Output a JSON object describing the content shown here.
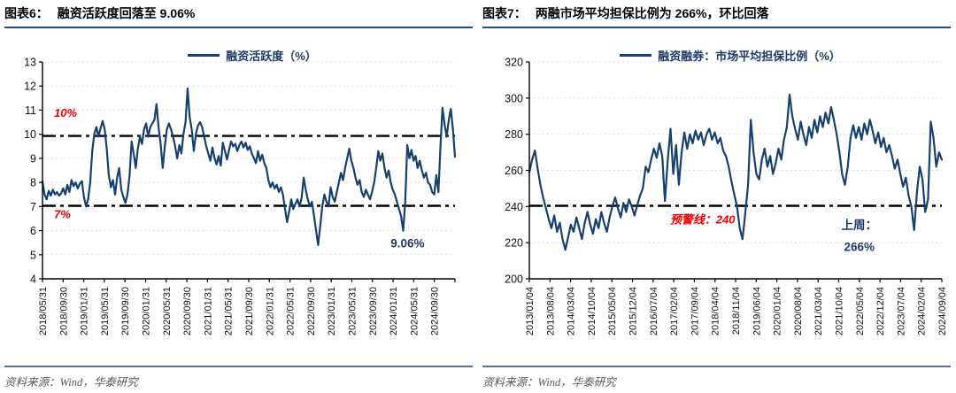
{
  "panels": [
    {
      "figure_label": "图表6：",
      "title": "融资活跃度回落至 9.06%",
      "source": "资料来源：Wind，华泰研究"
    },
    {
      "figure_label": "图表7：",
      "title": "两融市场平均担保比例为 266%，环比回落",
      "source": "资料来源：Wind，华泰研究"
    }
  ],
  "colors": {
    "series_line": "#17406e",
    "legend_text": "#1f3a68",
    "annotation_text": "#1f3a68",
    "reference_line": "#000000",
    "reference_label": "#f00000",
    "grid_line": "#d9d9d9",
    "axis": "#000000",
    "header_rule": "#1f4e79",
    "footer_rule": "#54759b",
    "footer_text": "#595959",
    "title_text": "#000000"
  },
  "chart_data": [
    {
      "type": "line",
      "title": "图表6：融资活跃度回落至 9.06%",
      "legend": [
        "融资活跃度（%）"
      ],
      "legend_position": "top-center",
      "grid": "horizontal-dotted",
      "ylim": [
        4,
        13
      ],
      "yticks": [
        4,
        5,
        6,
        7,
        8,
        9,
        10,
        11,
        12,
        13
      ],
      "x_tick_labels": [
        "2018/05/31",
        "2018/09/30",
        "2019/01/31",
        "2019/05/31",
        "2019/09/30",
        "2020/01/31",
        "2020/05/31",
        "2020/09/30",
        "2021/01/31",
        "2021/05/31",
        "2021/09/30",
        "2022/01/31",
        "2022/05/31",
        "2022/09/30",
        "2023/01/31",
        "2023/05/31",
        "2023/09/30",
        "2024/01/31",
        "2024/05/31",
        "2024/09/30"
      ],
      "ref_lines": [
        {
          "y": 9.93,
          "label": "10%",
          "label_x": 0.028,
          "label_y": 10.72,
          "anchor": "start"
        },
        {
          "y": 7.03,
          "label": "7%",
          "label_x": 0.028,
          "label_y": 6.52,
          "anchor": "start"
        }
      ],
      "annotations": [
        {
          "text": "9.06%",
          "x": 0.885,
          "y": 5.3
        }
      ],
      "series": [
        {
          "name": "融资活跃度（%）",
          "color": "#17406e",
          "values": [
            8.05,
            7.5,
            7.3,
            7.65,
            7.45,
            7.7,
            7.5,
            7.6,
            7.45,
            7.55,
            7.75,
            7.5,
            7.9,
            7.6,
            8.1,
            7.85,
            8.0,
            7.75,
            7.95,
            8.05,
            7.4,
            7.0,
            7.3,
            8.0,
            9.3,
            10.0,
            10.3,
            9.9,
            10.25,
            10.55,
            10.2,
            9.4,
            8.3,
            7.8,
            8.1,
            7.5,
            8.2,
            8.6,
            7.7,
            7.4,
            7.15,
            7.5,
            8.3,
            9.7,
            9.2,
            8.6,
            9.4,
            9.9,
            9.6,
            10.2,
            10.45,
            9.9,
            10.3,
            10.45,
            10.6,
            11.25,
            10.3,
            9.6,
            8.6,
            9.5,
            10.2,
            10.45,
            10.2,
            9.9,
            9.5,
            9.0,
            9.55,
            9.2,
            10.0,
            10.5,
            11.9,
            10.7,
            10.2,
            9.3,
            10.0,
            10.35,
            10.5,
            10.3,
            9.9,
            9.5,
            9.2,
            8.9,
            9.45,
            9.0,
            8.75,
            9.1,
            8.7,
            9.65,
            9.3,
            8.95,
            9.35,
            9.7,
            9.5,
            9.6,
            9.3,
            9.55,
            9.7,
            9.45,
            9.65,
            9.35,
            9.5,
            9.2,
            9.0,
            8.8,
            9.3,
            8.9,
            9.15,
            8.8,
            8.6,
            8.1,
            7.8,
            8.0,
            7.75,
            7.9,
            7.6,
            7.8,
            7.5,
            6.9,
            6.35,
            6.8,
            7.3,
            6.9,
            7.1,
            7.3,
            7.0,
            7.35,
            8.2,
            7.7,
            7.3,
            7.0,
            7.2,
            6.6,
            6.0,
            5.4,
            6.2,
            7.0,
            7.5,
            7.2,
            7.0,
            7.8,
            7.4,
            7.2,
            7.6,
            8.0,
            8.4,
            8.1,
            8.6,
            9.0,
            9.4,
            8.9,
            8.6,
            8.2,
            7.9,
            8.1,
            7.6,
            7.4,
            7.7,
            7.5,
            7.3,
            7.6,
            8.0,
            8.6,
            9.3,
            8.9,
            9.2,
            8.6,
            8.2,
            8.5,
            8.0,
            7.7,
            7.5,
            7.2,
            6.9,
            6.6,
            6.0,
            7.2,
            9.55,
            9.0,
            9.35,
            8.9,
            9.1,
            8.6,
            8.9,
            8.5,
            8.2,
            8.4,
            8.0,
            7.9,
            7.6,
            7.5,
            8.3,
            7.6,
            9.5,
            11.1,
            10.4,
            9.9,
            10.6,
            11.05,
            10.2,
            9.06
          ]
        }
      ]
    },
    {
      "type": "line",
      "title": "图表7：两融市场平均担保比例为 266%，环比回落",
      "legend": [
        "融资融券：市场平均担保比例（%）"
      ],
      "legend_position": "top-center",
      "grid": "horizontal-dotted",
      "ylim": [
        200,
        320
      ],
      "yticks": [
        200,
        220,
        240,
        260,
        280,
        300,
        320
      ],
      "x_tick_labels": [
        "2013/01/04",
        "2013/08/04",
        "2014/03/04",
        "2014/10/04",
        "2015/05/04",
        "2015/12/04",
        "2016/07/04",
        "2017/02/04",
        "2017/09/04",
        "2018/04/04",
        "2018/11/04",
        "2019/06/04",
        "2020/01/04",
        "2020/08/04",
        "2021/03/04",
        "2021/10/04",
        "2022/05/04",
        "2022/12/04",
        "2023/07/04",
        "2024/02/04",
        "2024/09/04"
      ],
      "ref_lines": [
        {
          "y": 240.4,
          "label": "预警线：240",
          "label_x": 0.42,
          "label_y": 230.5,
          "anchor": "middle"
        }
      ],
      "annotations": [
        {
          "text": "上周：",
          "x": 0.8,
          "y": 227.5
        },
        {
          "text": "266%",
          "x": 0.8,
          "y": 215.5
        }
      ],
      "series": [
        {
          "name": "融资融券：市场平均担保比例（%）",
          "color": "#17406e",
          "values": [
            259,
            266,
            271,
            261,
            252,
            245,
            239,
            233,
            228,
            235,
            226,
            231,
            222,
            216,
            223,
            230,
            226,
            234,
            228,
            222,
            231,
            237,
            230,
            225,
            233,
            228,
            237,
            231,
            226,
            234,
            240,
            245,
            239,
            234,
            242,
            237,
            244,
            240,
            235,
            241,
            246,
            250,
            262,
            259,
            266,
            272,
            267,
            275,
            268,
            243,
            266,
            283,
            258,
            274,
            252,
            270,
            281,
            272,
            280,
            275,
            282,
            277,
            281,
            274,
            280,
            283,
            277,
            281,
            275,
            278,
            271,
            268,
            262,
            254,
            247,
            240,
            228,
            222,
            236,
            252,
            288,
            270,
            258,
            255,
            266,
            272,
            262,
            268,
            258,
            264,
            272,
            266,
            277,
            284,
            302,
            290,
            283,
            277,
            287,
            280,
            274,
            284,
            278,
            288,
            281,
            290,
            284,
            292,
            286,
            295,
            288,
            280,
            270,
            258,
            252,
            262,
            278,
            285,
            278,
            284,
            277,
            286,
            280,
            288,
            282,
            275,
            281,
            273,
            278,
            270,
            274,
            268,
            261,
            266,
            258,
            251,
            256,
            246,
            240,
            227,
            248,
            262,
            255,
            237,
            244,
            287,
            278,
            262,
            270,
            266
          ]
        }
      ]
    }
  ]
}
